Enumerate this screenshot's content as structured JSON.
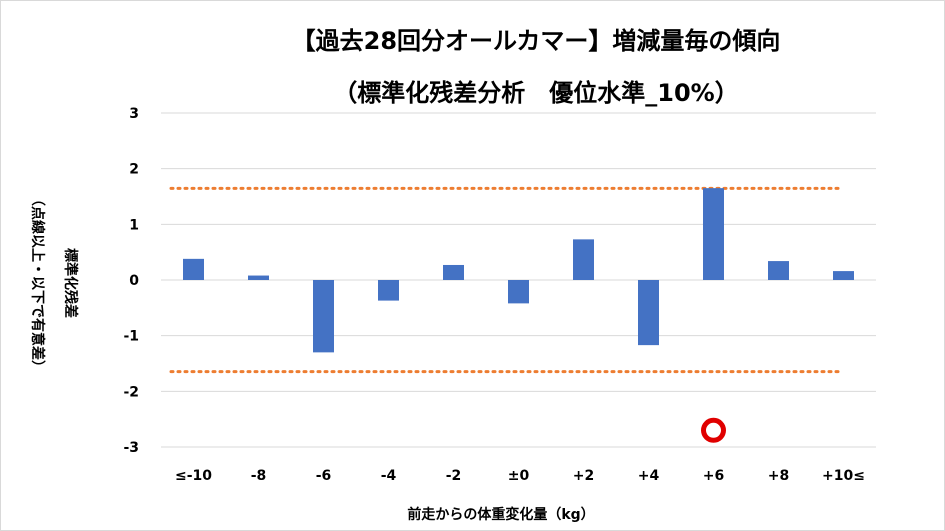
{
  "chart_data": {
    "type": "bar",
    "title": "【過去28回分オールカマー】増減量毎の傾向",
    "subtitle": "（標準化残差分析　優位水準_10%）",
    "xlabel": "前走からの体重変化量（kg）",
    "ylabel": "標準化残差",
    "ylabel_note": "（点線以上・以下で有意差）",
    "categories": [
      "≤-10",
      "-8",
      "-6",
      "-4",
      "-2",
      "±0",
      "+2",
      "+4",
      "+6",
      "+8",
      "+10≤"
    ],
    "values": [
      0.38,
      0.08,
      -1.3,
      -0.37,
      0.27,
      -0.42,
      0.73,
      -1.17,
      1.65,
      0.34,
      0.16
    ],
    "ylim": [
      -3,
      3
    ],
    "yticks": [
      "3",
      "2",
      "1",
      "0",
      "-1",
      "-2",
      "-3"
    ],
    "threshold_lines": [
      1.645,
      -1.645
    ],
    "highlight_marker": {
      "category": "+6",
      "y": -2.7,
      "shape": "circle"
    },
    "grid": true,
    "colors": {
      "bar": "#4472c4",
      "threshold": "#ed7d31",
      "grid": "#d9d9d9",
      "marker_ring": "#e00000"
    }
  }
}
